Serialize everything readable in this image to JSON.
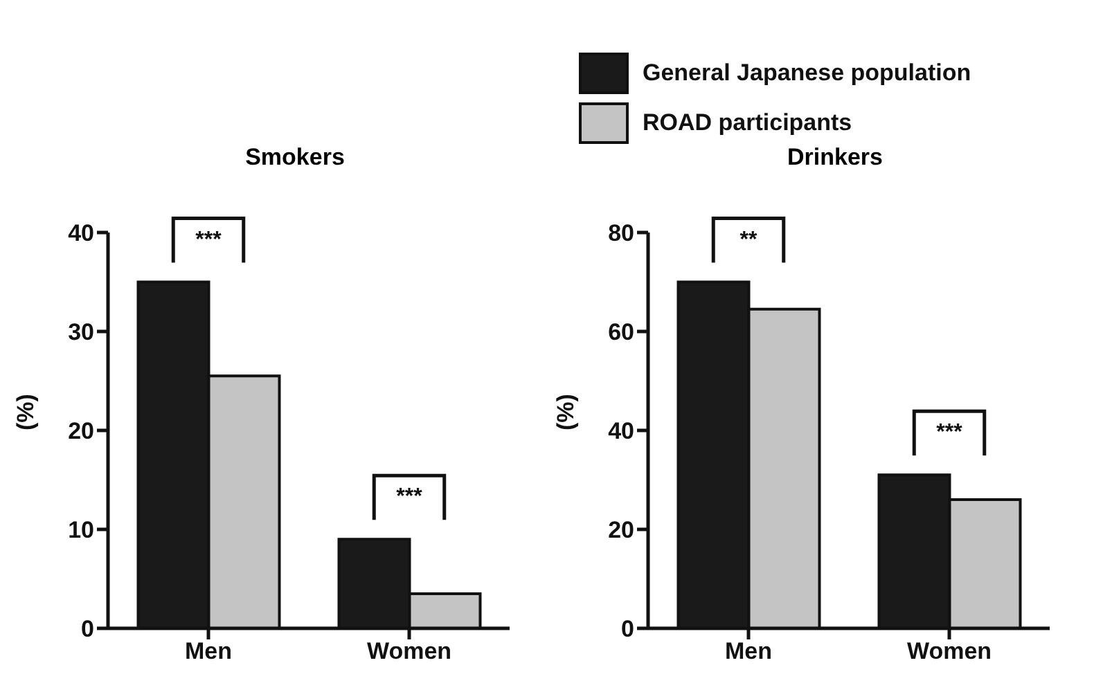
{
  "chart_data": [
    {
      "type": "bar",
      "title": "Smokers",
      "ylabel": "(%)",
      "categories": [
        "Men",
        "Women"
      ],
      "ylim": [
        0,
        40
      ],
      "yticks": [
        0,
        10,
        20,
        30,
        40
      ],
      "series": [
        {
          "color": "#1a1a1a",
          "values": [
            35,
            9
          ]
        },
        {
          "color": "#c4c4c4",
          "values": [
            25.5,
            3.5
          ]
        }
      ],
      "annotations": [
        "***",
        "***"
      ],
      "grid": false,
      "legend": false
    },
    {
      "type": "bar",
      "title": "Drinkers",
      "ylabel": "(%)",
      "categories": [
        "Men",
        "Women"
      ],
      "ylim": [
        0,
        80
      ],
      "yticks": [
        0,
        20,
        40,
        60,
        80
      ],
      "series": [
        {
          "name": "General Japanese population",
          "color": "#1a1a1a",
          "values": [
            70,
            31
          ]
        },
        {
          "name": "ROAD participants",
          "color": "#c4c4c4",
          "values": [
            64.5,
            26
          ]
        }
      ],
      "annotations": [
        "**",
        "***"
      ],
      "grid": false,
      "legend": "top"
    }
  ]
}
